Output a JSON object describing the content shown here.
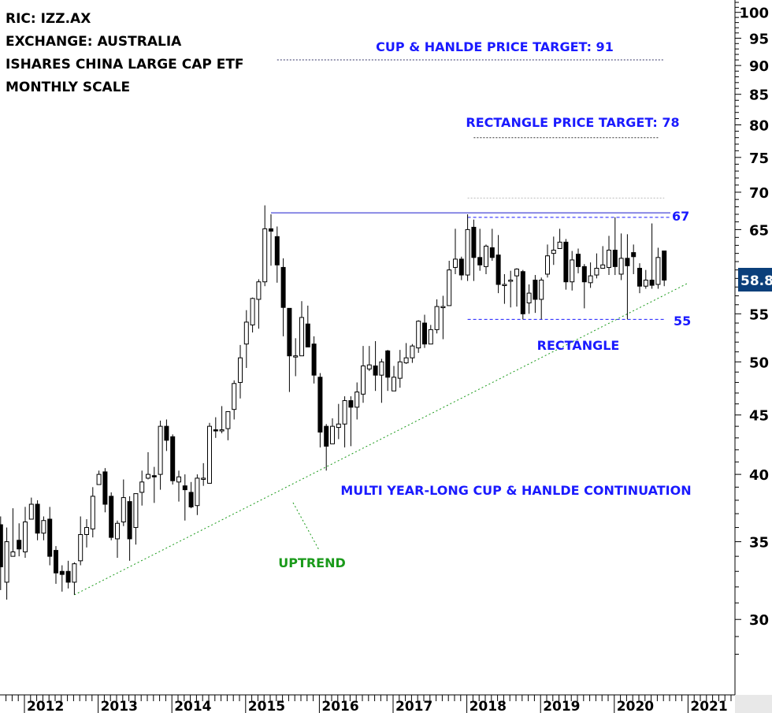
{
  "info": {
    "line1": "RIC: IZZ.AX",
    "line2": "EXCHANGE: AUSTRALIA",
    "line3": "ISHARES CHINA LARGE CAP ETF",
    "line4": "MONTHLY SCALE"
  },
  "annotations": {
    "cup_target": "CUP & HANLDE PRICE TARGET: 91",
    "rect_target": "RECTANGLE PRICE TARGET: 78",
    "rect_top": "67",
    "rect_bottom": "55",
    "rectangle": "RECTANGLE",
    "continuation": "MULTI YEAR-LONG CUP & HANLDE CONTINUATION",
    "uptrend": "UPTREND"
  },
  "colors": {
    "annotation": "#1a1aff",
    "trendline": "#1a9a1a",
    "last_price_bg": "#0b3f7a",
    "axis": "#000000",
    "panel": "#e8e8e8"
  },
  "chart_data": {
    "type": "candlestick",
    "scale": "log",
    "ylim": [
      27,
      103
    ],
    "y_ticks": [
      100,
      95,
      90,
      85,
      80,
      75,
      70,
      65,
      55,
      50,
      45,
      40,
      35,
      30
    ],
    "x_ticks": [
      "2012",
      "2013",
      "2014",
      "2015",
      "2016",
      "2017",
      "2018",
      "2019",
      "2020",
      "2021"
    ],
    "last_price": "58.8",
    "start_month": "2011-09",
    "ohlc": [
      [
        36.2,
        36.8,
        31.8,
        33.3
      ],
      [
        32.3,
        36.0,
        31.2,
        35.0
      ],
      [
        34.0,
        37.4,
        34.0,
        34.3
      ],
      [
        35.1,
        36.3,
        34.0,
        34.5
      ],
      [
        34.3,
        37.5,
        33.9,
        36.4
      ],
      [
        36.6,
        38.2,
        36.6,
        37.7
      ],
      [
        37.7,
        38.0,
        35.1,
        35.6
      ],
      [
        35.6,
        36.8,
        35.1,
        36.5
      ],
      [
        36.6,
        37.5,
        33.4,
        34.0
      ],
      [
        34.4,
        34.7,
        32.2,
        32.9
      ],
      [
        33.0,
        33.4,
        31.7,
        32.8
      ],
      [
        33.0,
        33.7,
        31.9,
        32.3
      ],
      [
        32.3,
        33.6,
        31.5,
        33.5
      ],
      [
        33.7,
        36.8,
        33.4,
        35.5
      ],
      [
        35.5,
        36.6,
        34.6,
        36.0
      ],
      [
        35.9,
        39.0,
        35.3,
        38.3
      ],
      [
        39.2,
        40.3,
        39.2,
        40.0
      ],
      [
        40.2,
        40.5,
        37.1,
        37.7
      ],
      [
        38.3,
        38.6,
        35.1,
        35.3
      ],
      [
        35.2,
        36.5,
        33.9,
        36.3
      ],
      [
        36.4,
        39.6,
        36.1,
        38.2
      ],
      [
        37.9,
        38.3,
        33.7,
        35.2
      ],
      [
        36.0,
        38.5,
        34.8,
        38.5
      ],
      [
        38.6,
        40.3,
        37.6,
        39.4
      ],
      [
        39.7,
        41.8,
        39.6,
        40.0
      ],
      [
        39.9,
        40.6,
        37.8,
        39.8
      ],
      [
        40.0,
        44.5,
        38.8,
        44.0
      ],
      [
        44.0,
        44.6,
        41.9,
        42.8
      ],
      [
        43.1,
        43.3,
        39.2,
        39.5
      ],
      [
        39.4,
        40.3,
        37.9,
        39.8
      ],
      [
        39.1,
        40.0,
        36.5,
        38.8
      ],
      [
        38.6,
        39.4,
        37.4,
        37.5
      ],
      [
        37.6,
        40.0,
        36.9,
        39.7
      ],
      [
        39.7,
        40.9,
        39.1,
        39.7
      ],
      [
        39.3,
        44.3,
        39.3,
        44.0
      ],
      [
        43.7,
        44.8,
        43.0,
        43.6
      ],
      [
        43.7,
        45.8,
        43.4,
        43.7
      ],
      [
        43.8,
        45.3,
        42.8,
        45.3
      ],
      [
        45.5,
        48.2,
        44.6,
        47.9
      ],
      [
        48.0,
        51.7,
        46.5,
        50.4
      ],
      [
        51.8,
        55.4,
        49.4,
        54.1
      ],
      [
        53.8,
        56.8,
        53.0,
        56.7
      ],
      [
        56.6,
        58.9,
        53.4,
        58.6
      ],
      [
        58.6,
        68.2,
        58.1,
        65.1
      ],
      [
        65.1,
        67.0,
        60.5,
        64.8
      ],
      [
        64.1,
        65.4,
        58.5,
        60.6
      ],
      [
        60.3,
        61.4,
        52.6,
        55.7
      ],
      [
        55.6,
        55.6,
        47.1,
        50.6
      ],
      [
        50.6,
        52.4,
        48.6,
        50.6
      ],
      [
        50.6,
        56.4,
        50.6,
        54.6
      ],
      [
        53.9,
        55.9,
        51.5,
        51.5
      ],
      [
        51.8,
        52.6,
        47.9,
        48.7
      ],
      [
        48.5,
        48.9,
        42.2,
        43.5
      ],
      [
        44.0,
        44.2,
        40.3,
        42.3
      ],
      [
        42.5,
        44.7,
        42.5,
        44.0
      ],
      [
        43.9,
        46.0,
        42.9,
        44.2
      ],
      [
        44.2,
        46.7,
        42.2,
        46.3
      ],
      [
        46.3,
        46.7,
        42.3,
        45.7
      ],
      [
        45.7,
        48.0,
        44.6,
        47.1
      ],
      [
        46.9,
        51.6,
        46.1,
        49.6
      ],
      [
        49.3,
        51.6,
        49.1,
        49.7
      ],
      [
        49.6,
        52.1,
        47.2,
        48.7
      ],
      [
        48.7,
        50.3,
        46.1,
        50.0
      ],
      [
        51.1,
        51.2,
        47.2,
        48.5
      ],
      [
        47.2,
        49.6,
        47.2,
        48.5
      ],
      [
        48.4,
        51.2,
        47.5,
        50.0
      ],
      [
        49.9,
        51.9,
        49.8,
        50.4
      ],
      [
        50.4,
        51.8,
        49.9,
        51.6
      ],
      [
        51.4,
        54.3,
        50.9,
        54.2
      ],
      [
        54.0,
        54.9,
        51.4,
        51.8
      ],
      [
        51.8,
        53.8,
        51.8,
        53.3
      ],
      [
        53.3,
        56.6,
        52.9,
        55.8
      ],
      [
        55.8,
        57.0,
        52.3,
        55.8
      ],
      [
        55.9,
        61.1,
        55.9,
        60.0
      ],
      [
        60.3,
        65.1,
        59.5,
        61.3
      ],
      [
        61.3,
        61.6,
        58.8,
        59.4
      ],
      [
        59.4,
        67.0,
        58.7,
        65.0
      ],
      [
        65.3,
        66.3,
        58.7,
        61.5
      ],
      [
        61.5,
        65.1,
        59.9,
        60.6
      ],
      [
        60.4,
        63.1,
        59.5,
        62.9
      ],
      [
        62.7,
        65.1,
        61.1,
        61.5
      ],
      [
        61.8,
        64.3,
        57.3,
        58.3
      ],
      [
        58.3,
        59.5,
        56.1,
        58.3
      ],
      [
        58.8,
        59.9,
        55.7,
        58.8
      ],
      [
        59.3,
        60.2,
        55.8,
        60.1
      ],
      [
        59.8,
        60.0,
        54.4,
        55.0
      ],
      [
        56.2,
        58.3,
        55.0,
        57.3
      ],
      [
        58.8,
        59.4,
        55.1,
        56.6
      ],
      [
        56.6,
        59.1,
        54.4,
        58.8
      ],
      [
        59.5,
        63.1,
        59.1,
        61.7
      ],
      [
        62.0,
        64.1,
        60.6,
        62.4
      ],
      [
        62.6,
        65.1,
        62.6,
        63.4
      ],
      [
        63.4,
        63.8,
        57.7,
        58.6
      ],
      [
        58.6,
        62.3,
        57.6,
        61.2
      ],
      [
        61.9,
        62.6,
        59.6,
        60.4
      ],
      [
        60.4,
        60.7,
        55.6,
        58.6
      ],
      [
        58.5,
        60.9,
        57.9,
        59.3
      ],
      [
        59.4,
        62.0,
        59.0,
        60.2
      ],
      [
        60.2,
        62.9,
        60.2,
        60.6
      ],
      [
        60.3,
        64.2,
        59.4,
        62.4
      ],
      [
        62.4,
        66.6,
        59.4,
        60.4
      ],
      [
        59.5,
        64.5,
        58.8,
        61.4
      ],
      [
        61.4,
        64.4,
        54.4,
        60.5
      ],
      [
        62.1,
        63.1,
        59.5,
        61.6
      ],
      [
        60.2,
        60.8,
        57.3,
        58.1
      ],
      [
        58.1,
        60.0,
        57.8,
        58.8
      ],
      [
        58.8,
        65.8,
        57.8,
        58.2
      ],
      [
        58.3,
        62.7,
        57.8,
        61.5
      ],
      [
        62.3,
        62.3,
        58.1,
        58.8
      ]
    ],
    "lines": {
      "peak_resistance": {
        "price": 67.2,
        "from": "2015-05",
        "to": "2020-10"
      },
      "rect_top": {
        "price": 66.6,
        "from": "2018-01",
        "to": "2020-10"
      },
      "rect_bottom": {
        "price": 54.4,
        "from": "2018-01",
        "to": "2020-09"
      },
      "rect_height_ref": {
        "price": 69.2,
        "from": "2018-01",
        "to": "2020-09"
      },
      "cup_target": {
        "price": 91,
        "from": "2015-06",
        "to": "2020-09"
      },
      "rect_target": {
        "price": 78,
        "from": "2018-02",
        "to": "2020-08"
      },
      "uptrend": {
        "from": {
          "date": "2012-09",
          "price": 31.5
        },
        "to": {
          "date": "2021-01",
          "price": 58.5
        }
      }
    }
  }
}
